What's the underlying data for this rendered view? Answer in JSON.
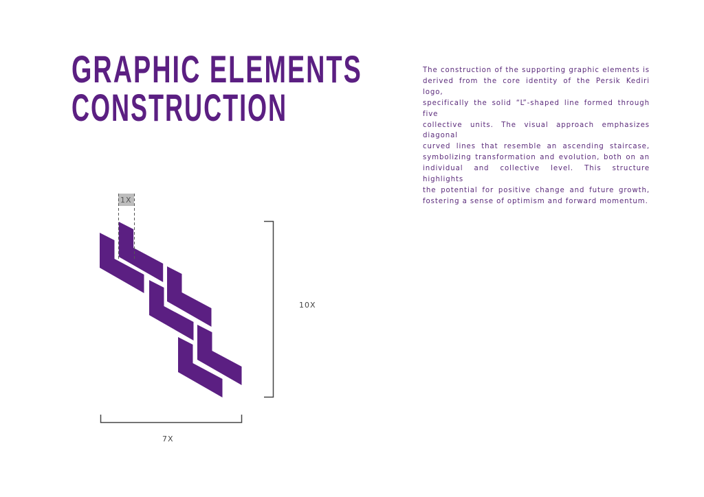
{
  "title": {
    "line1": "GRAPHIC ELEMENTS",
    "line2": "CONSTRUCTION"
  },
  "description": {
    "lines": [
      "The construction of the supporting graphic elements is",
      "derived from the core identity of the Persik Kediri logo,",
      "specifically the solid “L”-shaped line formed through five",
      "collective units. The visual approach emphasizes diagonal",
      "curved lines that resemble an ascending staircase,",
      "symbolizing transformation and evolution, both on an",
      "individual and collective level. This structure highlights",
      "the potential for positive change and future growth,",
      "fostering a sense of optimism and forward momentum."
    ]
  },
  "diagram": {
    "unit_label": "1X",
    "height_label": "10X",
    "width_label": "7X",
    "brand_color": "#5b1f82"
  }
}
